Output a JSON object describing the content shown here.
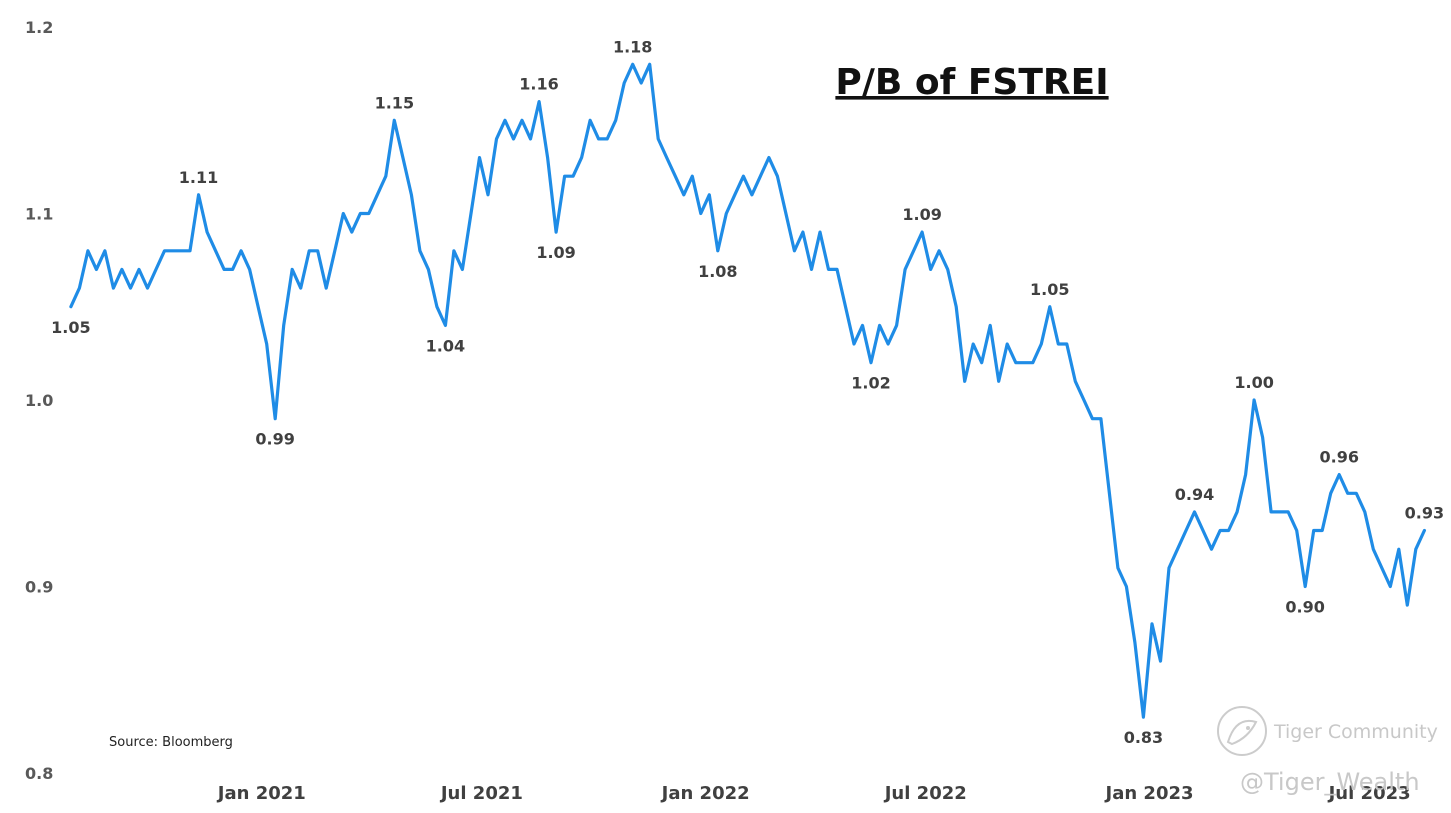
{
  "chart_data": {
    "type": "line",
    "title": "P/B of FSTREI",
    "source": "Source: Bloomberg",
    "ylim": [
      0.8,
      1.2
    ],
    "y_ticks": [
      {
        "value": 1.2,
        "label": "1.2"
      },
      {
        "value": 1.1,
        "label": "1.1"
      },
      {
        "value": 1.0,
        "label": "1.0"
      },
      {
        "value": 0.9,
        "label": "0.9"
      },
      {
        "value": 0.8,
        "label": "0.8"
      }
    ],
    "xlim": [
      "2020-07-24",
      "2023-08-18"
    ],
    "x_ticks": [
      {
        "date": "2021-01-01",
        "label": "Jan 2021"
      },
      {
        "date": "2021-07-01",
        "label": "Jul 2021"
      },
      {
        "date": "2022-01-01",
        "label": "Jan 2022"
      },
      {
        "date": "2022-07-01",
        "label": "Jul 2022"
      },
      {
        "date": "2023-01-01",
        "label": "Jan 2023"
      },
      {
        "date": "2023-07-01",
        "label": "Jul 2023"
      }
    ],
    "grid": false,
    "legend": "none",
    "line_color": "#1f8ce6",
    "series": [
      {
        "points": [
          [
            "2020-07-28",
            1.05
          ],
          [
            "2020-08-04",
            1.06
          ],
          [
            "2020-08-11",
            1.08
          ],
          [
            "2020-08-18",
            1.07
          ],
          [
            "2020-08-25",
            1.08
          ],
          [
            "2020-09-01",
            1.06
          ],
          [
            "2020-09-08",
            1.07
          ],
          [
            "2020-09-15",
            1.06
          ],
          [
            "2020-09-22",
            1.07
          ],
          [
            "2020-09-29",
            1.06
          ],
          [
            "2020-10-06",
            1.07
          ],
          [
            "2020-10-13",
            1.08
          ],
          [
            "2020-10-20",
            1.08
          ],
          [
            "2020-10-27",
            1.08
          ],
          [
            "2020-11-03",
            1.08
          ],
          [
            "2020-11-10",
            1.11
          ],
          [
            "2020-11-17",
            1.09
          ],
          [
            "2020-11-24",
            1.08
          ],
          [
            "2020-12-01",
            1.07
          ],
          [
            "2020-12-08",
            1.07
          ],
          [
            "2020-12-15",
            1.08
          ],
          [
            "2020-12-22",
            1.07
          ],
          [
            "2020-12-29",
            1.05
          ],
          [
            "2021-01-05",
            1.03
          ],
          [
            "2021-01-12",
            0.99
          ],
          [
            "2021-01-19",
            1.04
          ],
          [
            "2021-01-26",
            1.07
          ],
          [
            "2021-02-02",
            1.06
          ],
          [
            "2021-02-09",
            1.08
          ],
          [
            "2021-02-16",
            1.08
          ],
          [
            "2021-02-23",
            1.06
          ],
          [
            "2021-03-02",
            1.08
          ],
          [
            "2021-03-09",
            1.1
          ],
          [
            "2021-03-16",
            1.09
          ],
          [
            "2021-03-23",
            1.1
          ],
          [
            "2021-03-30",
            1.1
          ],
          [
            "2021-04-06",
            1.11
          ],
          [
            "2021-04-13",
            1.12
          ],
          [
            "2021-04-20",
            1.15
          ],
          [
            "2021-04-27",
            1.13
          ],
          [
            "2021-05-04",
            1.11
          ],
          [
            "2021-05-11",
            1.08
          ],
          [
            "2021-05-18",
            1.07
          ],
          [
            "2021-05-25",
            1.05
          ],
          [
            "2021-06-01",
            1.04
          ],
          [
            "2021-06-08",
            1.08
          ],
          [
            "2021-06-15",
            1.07
          ],
          [
            "2021-06-22",
            1.1
          ],
          [
            "2021-06-29",
            1.13
          ],
          [
            "2021-07-06",
            1.11
          ],
          [
            "2021-07-13",
            1.14
          ],
          [
            "2021-07-20",
            1.15
          ],
          [
            "2021-07-27",
            1.14
          ],
          [
            "2021-08-03",
            1.15
          ],
          [
            "2021-08-10",
            1.14
          ],
          [
            "2021-08-17",
            1.16
          ],
          [
            "2021-08-24",
            1.13
          ],
          [
            "2021-08-31",
            1.09
          ],
          [
            "2021-09-07",
            1.12
          ],
          [
            "2021-09-14",
            1.12
          ],
          [
            "2021-09-21",
            1.13
          ],
          [
            "2021-09-28",
            1.15
          ],
          [
            "2021-10-05",
            1.14
          ],
          [
            "2021-10-12",
            1.14
          ],
          [
            "2021-10-19",
            1.15
          ],
          [
            "2021-10-26",
            1.17
          ],
          [
            "2021-11-02",
            1.18
          ],
          [
            "2021-11-09",
            1.17
          ],
          [
            "2021-11-16",
            1.18
          ],
          [
            "2021-11-23",
            1.14
          ],
          [
            "2021-11-30",
            1.13
          ],
          [
            "2021-12-07",
            1.12
          ],
          [
            "2021-12-14",
            1.11
          ],
          [
            "2021-12-21",
            1.12
          ],
          [
            "2021-12-28",
            1.1
          ],
          [
            "2022-01-04",
            1.11
          ],
          [
            "2022-01-11",
            1.08
          ],
          [
            "2022-01-18",
            1.1
          ],
          [
            "2022-01-25",
            1.11
          ],
          [
            "2022-02-01",
            1.12
          ],
          [
            "2022-02-08",
            1.11
          ],
          [
            "2022-02-15",
            1.12
          ],
          [
            "2022-02-22",
            1.13
          ],
          [
            "2022-03-01",
            1.12
          ],
          [
            "2022-03-08",
            1.1
          ],
          [
            "2022-03-15",
            1.08
          ],
          [
            "2022-03-22",
            1.09
          ],
          [
            "2022-03-29",
            1.07
          ],
          [
            "2022-04-05",
            1.09
          ],
          [
            "2022-04-12",
            1.07
          ],
          [
            "2022-04-19",
            1.07
          ],
          [
            "2022-04-26",
            1.05
          ],
          [
            "2022-05-03",
            1.03
          ],
          [
            "2022-05-10",
            1.04
          ],
          [
            "2022-05-17",
            1.02
          ],
          [
            "2022-05-24",
            1.04
          ],
          [
            "2022-05-31",
            1.03
          ],
          [
            "2022-06-07",
            1.04
          ],
          [
            "2022-06-14",
            1.07
          ],
          [
            "2022-06-21",
            1.08
          ],
          [
            "2022-06-28",
            1.09
          ],
          [
            "2022-07-05",
            1.07
          ],
          [
            "2022-07-12",
            1.08
          ],
          [
            "2022-07-19",
            1.07
          ],
          [
            "2022-07-26",
            1.05
          ],
          [
            "2022-08-02",
            1.01
          ],
          [
            "2022-08-09",
            1.03
          ],
          [
            "2022-08-16",
            1.02
          ],
          [
            "2022-08-23",
            1.04
          ],
          [
            "2022-08-30",
            1.01
          ],
          [
            "2022-09-06",
            1.03
          ],
          [
            "2022-09-13",
            1.02
          ],
          [
            "2022-09-20",
            1.02
          ],
          [
            "2022-09-27",
            1.02
          ],
          [
            "2022-10-04",
            1.03
          ],
          [
            "2022-10-11",
            1.05
          ],
          [
            "2022-10-18",
            1.03
          ],
          [
            "2022-10-25",
            1.03
          ],
          [
            "2022-11-01",
            1.01
          ],
          [
            "2022-11-08",
            1.0
          ],
          [
            "2022-11-15",
            0.99
          ],
          [
            "2022-11-22",
            0.99
          ],
          [
            "2022-11-29",
            0.95
          ],
          [
            "2022-12-06",
            0.91
          ],
          [
            "2022-12-13",
            0.9
          ],
          [
            "2022-12-20",
            0.87
          ],
          [
            "2022-12-27",
            0.83
          ],
          [
            "2023-01-03",
            0.88
          ],
          [
            "2023-01-10",
            0.86
          ],
          [
            "2023-01-17",
            0.91
          ],
          [
            "2023-01-24",
            0.92
          ],
          [
            "2023-01-31",
            0.93
          ],
          [
            "2023-02-07",
            0.94
          ],
          [
            "2023-02-14",
            0.93
          ],
          [
            "2023-02-21",
            0.92
          ],
          [
            "2023-02-28",
            0.93
          ],
          [
            "2023-03-07",
            0.93
          ],
          [
            "2023-03-14",
            0.94
          ],
          [
            "2023-03-21",
            0.96
          ],
          [
            "2023-03-28",
            1.0
          ],
          [
            "2023-04-04",
            0.98
          ],
          [
            "2023-04-11",
            0.94
          ],
          [
            "2023-04-18",
            0.94
          ],
          [
            "2023-04-25",
            0.94
          ],
          [
            "2023-05-02",
            0.93
          ],
          [
            "2023-05-09",
            0.9
          ],
          [
            "2023-05-16",
            0.93
          ],
          [
            "2023-05-23",
            0.93
          ],
          [
            "2023-05-30",
            0.95
          ],
          [
            "2023-06-06",
            0.96
          ],
          [
            "2023-06-13",
            0.95
          ],
          [
            "2023-06-20",
            0.95
          ],
          [
            "2023-06-27",
            0.94
          ],
          [
            "2023-07-04",
            0.92
          ],
          [
            "2023-07-11",
            0.91
          ],
          [
            "2023-07-18",
            0.9
          ],
          [
            "2023-07-25",
            0.92
          ],
          [
            "2023-08-01",
            0.89
          ],
          [
            "2023-08-08",
            0.92
          ],
          [
            "2023-08-15",
            0.93
          ]
        ]
      }
    ],
    "annotations": [
      {
        "date": "2020-07-28",
        "value": 1.05,
        "label": "1.05",
        "position": "below"
      },
      {
        "date": "2020-11-10",
        "value": 1.11,
        "label": "1.11",
        "position": "above"
      },
      {
        "date": "2021-01-12",
        "value": 0.99,
        "label": "0.99",
        "position": "below"
      },
      {
        "date": "2021-04-20",
        "value": 1.15,
        "label": "1.15",
        "position": "above"
      },
      {
        "date": "2021-06-01",
        "value": 1.04,
        "label": "1.04",
        "position": "below"
      },
      {
        "date": "2021-08-17",
        "value": 1.16,
        "label": "1.16",
        "position": "above"
      },
      {
        "date": "2021-08-31",
        "value": 1.09,
        "label": "1.09",
        "position": "below"
      },
      {
        "date": "2021-11-02",
        "value": 1.18,
        "label": "1.18",
        "position": "above"
      },
      {
        "date": "2022-01-11",
        "value": 1.08,
        "label": "1.08",
        "position": "below"
      },
      {
        "date": "2022-05-17",
        "value": 1.02,
        "label": "1.02",
        "position": "below"
      },
      {
        "date": "2022-06-28",
        "value": 1.09,
        "label": "1.09",
        "position": "above"
      },
      {
        "date": "2022-10-11",
        "value": 1.05,
        "label": "1.05",
        "position": "above"
      },
      {
        "date": "2022-12-27",
        "value": 0.83,
        "label": "0.83",
        "position": "below"
      },
      {
        "date": "2023-02-07",
        "value": 0.94,
        "label": "0.94",
        "position": "above"
      },
      {
        "date": "2023-03-28",
        "value": 1.0,
        "label": "1.00",
        "position": "above"
      },
      {
        "date": "2023-05-09",
        "value": 0.9,
        "label": "0.90",
        "position": "below"
      },
      {
        "date": "2023-06-06",
        "value": 0.96,
        "label": "0.96",
        "position": "above"
      },
      {
        "date": "2023-08-15",
        "value": 0.93,
        "label": "0.93",
        "position": "above"
      }
    ]
  },
  "watermark": {
    "brand": "Tiger Community",
    "handle": "@Tiger_Wealth",
    "icon": "tiger-logo-icon"
  }
}
